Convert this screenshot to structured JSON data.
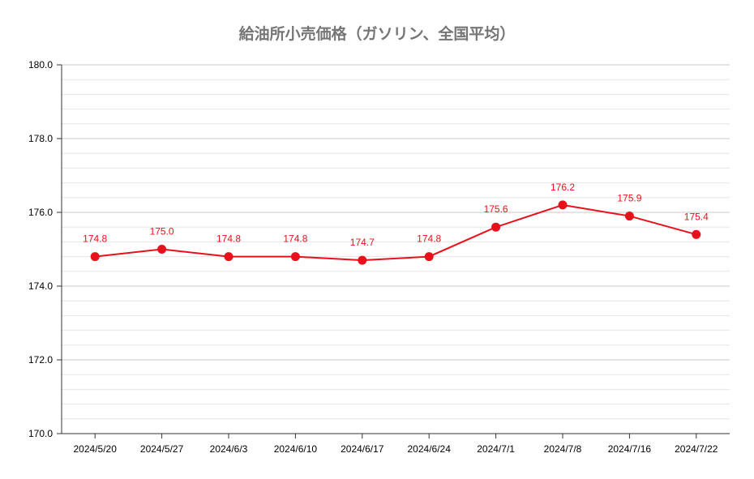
{
  "chart_data": {
    "type": "line",
    "title": "給油所小売価格（ガソリン、全国平均）",
    "categories": [
      "2024/5/20",
      "2024/5/27",
      "2024/6/3",
      "2024/6/10",
      "2024/6/17",
      "2024/6/24",
      "2024/7/1",
      "2024/7/8",
      "2024/7/16",
      "2024/7/22"
    ],
    "series": [
      {
        "values": [
          174.8,
          175.0,
          174.8,
          174.8,
          174.7,
          174.8,
          175.6,
          176.2,
          175.9,
          175.4
        ]
      }
    ],
    "data_labels": [
      "174.8",
      "175.0",
      "174.8",
      "174.8",
      "174.7",
      "174.8",
      "175.6",
      "176.2",
      "175.9",
      "175.4"
    ],
    "yticks": [
      "170.0",
      "172.0",
      "174.0",
      "176.0",
      "178.0",
      "180.0"
    ],
    "ylim": [
      170,
      180
    ],
    "xlabel": "",
    "ylabel": "",
    "grid": true,
    "minor_grid": true,
    "legend": "none",
    "line_color": "#e8101a",
    "grid_color": "#c8c8c8",
    "minor_grid_color": "#e6e6e6"
  }
}
